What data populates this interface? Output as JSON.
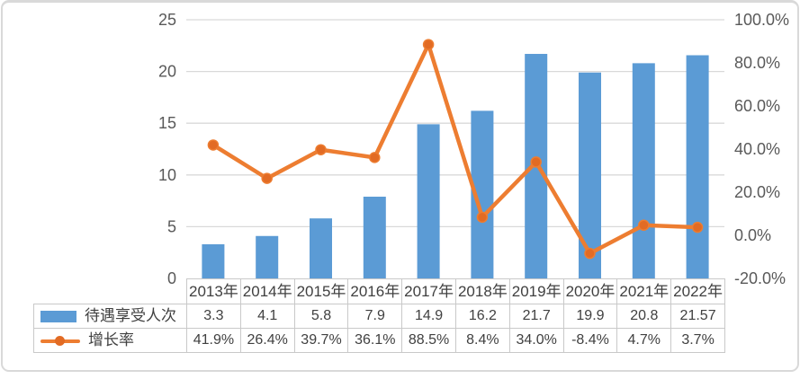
{
  "colors": {
    "bar": "#5B9BD5",
    "line": "#ED7D31",
    "line_marker": "#E26B24",
    "grid": "#D9D9D9",
    "axis_text": "#595959",
    "table_text": "#404040",
    "table_border": "#C9C9C9",
    "frame_border": "#D9D9D9"
  },
  "chart_data": {
    "type": "combo-bar-line",
    "categories": [
      "2013年",
      "2014年",
      "2015年",
      "2016年",
      "2017年",
      "2018年",
      "2019年",
      "2020年",
      "2021年",
      "2022年"
    ],
    "series": [
      {
        "name": "待遇享受人次",
        "type": "bar",
        "axis": "left",
        "values": [
          3.3,
          4.1,
          5.8,
          7.9,
          14.9,
          16.2,
          21.7,
          19.9,
          20.8,
          21.57
        ]
      },
      {
        "name": "增长率",
        "type": "line",
        "axis": "right",
        "values": [
          41.9,
          26.4,
          39.7,
          36.1,
          88.5,
          8.4,
          34.0,
          -8.4,
          4.7,
          3.7
        ],
        "unit": "%"
      }
    ],
    "title": "",
    "xlabel": "",
    "ylabel": "",
    "left_axis": {
      "min": 0,
      "max": 25,
      "ticks": [
        {
          "value": 0,
          "label": "0"
        },
        {
          "value": 5,
          "label": "5"
        },
        {
          "value": 10,
          "label": "10"
        },
        {
          "value": 15,
          "label": "15"
        },
        {
          "value": 20,
          "label": "20"
        },
        {
          "value": 25,
          "label": "25"
        }
      ]
    },
    "right_axis": {
      "min": -20,
      "max": 100,
      "ticks": [
        {
          "value": -20,
          "label": "-20.0%"
        },
        {
          "value": 0,
          "label": "0.0%"
        },
        {
          "value": 20,
          "label": "20.0%"
        },
        {
          "value": 40,
          "label": "40.0%"
        },
        {
          "value": 60,
          "label": "60.0%"
        },
        {
          "value": 80,
          "label": "80.0%"
        },
        {
          "value": 100,
          "label": "100.0%"
        }
      ]
    },
    "grid": true,
    "legend_position": "table-left"
  },
  "table": {
    "columns": [
      "2013年",
      "2014年",
      "2015年",
      "2016年",
      "2017年",
      "2018年",
      "2019年",
      "2020年",
      "2021年",
      "2022年"
    ],
    "rows": [
      {
        "legend": "bar-swatch",
        "label": "待遇享受人次",
        "values": [
          "3.3",
          "4.1",
          "5.8",
          "7.9",
          "14.9",
          "16.2",
          "21.7",
          "19.9",
          "20.8",
          "21.57"
        ]
      },
      {
        "legend": "line-swatch",
        "label": "增长率",
        "values": [
          "41.9%",
          "26.4%",
          "39.7%",
          "36.1%",
          "88.5%",
          "8.4%",
          "34.0%",
          "-8.4%",
          "4.7%",
          "3.7%"
        ]
      }
    ]
  }
}
